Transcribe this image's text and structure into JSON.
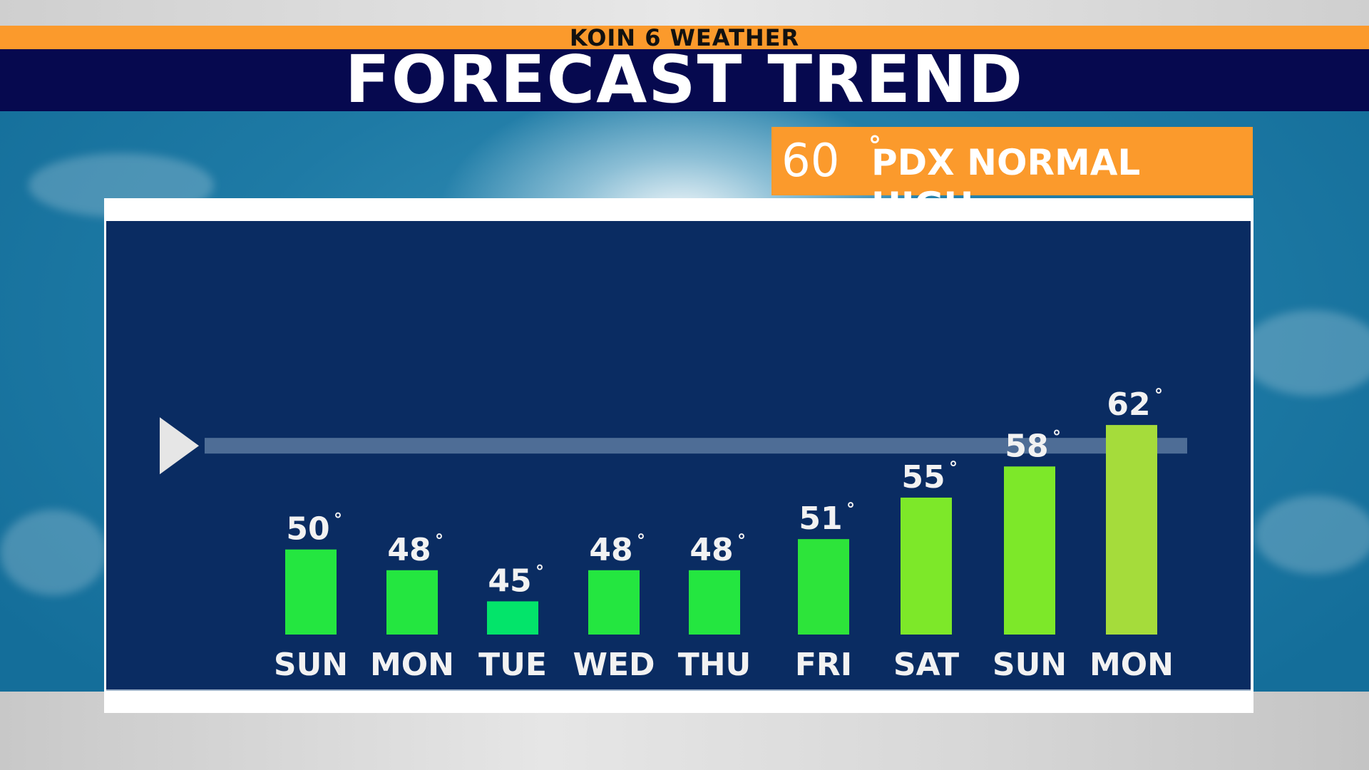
{
  "header": {
    "station": "KOIN 6 WEATHER",
    "title": "FORECAST TREND"
  },
  "normal_high": {
    "value": "60",
    "degree": "°",
    "label": "PDX NORMAL HIGH"
  },
  "chart_data": {
    "type": "bar",
    "categories": [
      "SUN",
      "MON",
      "TUE",
      "WED",
      "THU",
      "FRI",
      "SAT",
      "SUN",
      "MON"
    ],
    "values": [
      50,
      48,
      45,
      48,
      48,
      51,
      55,
      58,
      62
    ],
    "value_labels": [
      "50",
      "48",
      "45",
      "48",
      "48",
      "51",
      "55",
      "58",
      "62"
    ],
    "degree_symbol": "°",
    "bar_colors": [
      "#24e640",
      "#24e640",
      "#03e46a",
      "#24e640",
      "#24e640",
      "#2de43a",
      "#7de829",
      "#7de829",
      "#a5dc3b"
    ],
    "reference_line": {
      "value": 60
    },
    "ylim": [
      40,
      65
    ],
    "title": "",
    "xlabel": "",
    "ylabel": "",
    "grid": false,
    "legend": "none"
  },
  "colors": {
    "orange": "#fb9a2c",
    "navy_header": "#06094f",
    "chart_panel": "#0a2c62",
    "reference_line": "#5f7ea4",
    "marker": "#e6e6e6"
  }
}
